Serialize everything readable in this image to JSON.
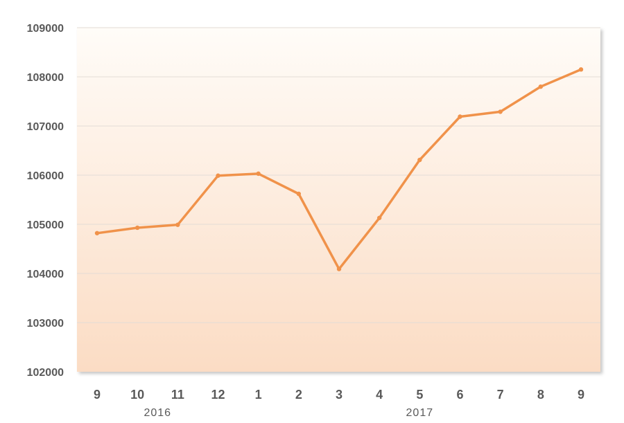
{
  "chart_data": {
    "type": "line",
    "categories": [
      "9",
      "10",
      "11",
      "12",
      "1",
      "2",
      "3",
      "4",
      "5",
      "6",
      "7",
      "8",
      "9"
    ],
    "category_groups": [
      {
        "label": "2016",
        "from": 0,
        "to": 3
      },
      {
        "label": "2017",
        "from": 4,
        "to": 12
      }
    ],
    "series": [
      {
        "values": [
          104820,
          104930,
          104990,
          105990,
          106030,
          105620,
          104090,
          105130,
          106310,
          107190,
          107290,
          107800,
          108150
        ]
      }
    ],
    "ylim": [
      102000,
      109000
    ],
    "yticks": [
      102000,
      103000,
      104000,
      105000,
      106000,
      107000,
      108000,
      109000
    ],
    "title": "",
    "xlabel": "",
    "ylabel": "",
    "grid": "horizontal",
    "legend": "none",
    "colors": {
      "line": "#F0924A",
      "plot_bg_top": "#FFFCF8",
      "plot_bg_bottom": "#FBDCC4",
      "grid": "#E3DCD6",
      "text": "#595959"
    }
  }
}
